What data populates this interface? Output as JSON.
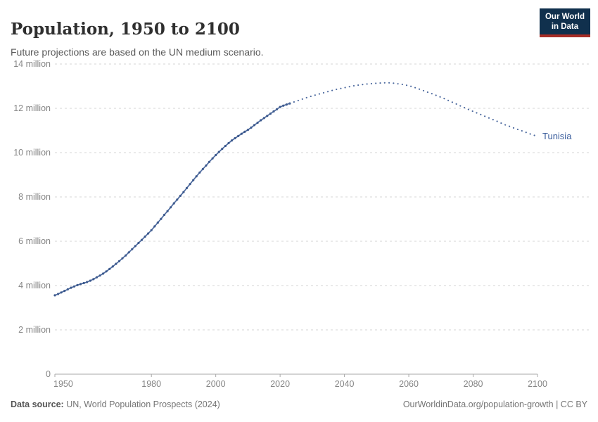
{
  "header": {
    "title": "Population, 1950 to 2100",
    "subtitle": "Future projections are based on the UN medium scenario.",
    "logo": {
      "line1": "Our World",
      "line2": "in Data",
      "bg_color": "#10304d",
      "accent_color": "#a72d26"
    }
  },
  "chart_data": {
    "type": "line",
    "title": "Population, 1950 to 2100",
    "subtitle": "Future projections are based on the UN medium scenario.",
    "entity": "Tunisia",
    "unit": "people",
    "xlim": [
      1950,
      2100
    ],
    "ylim_millions": [
      0,
      14
    ],
    "grid": true,
    "x_ticks": [
      1950,
      1980,
      2000,
      2020,
      2040,
      2060,
      2080,
      2100
    ],
    "y_ticks": [
      {
        "value_millions": 0,
        "label": "0"
      },
      {
        "value_millions": 2,
        "label": "2 million"
      },
      {
        "value_millions": 4,
        "label": "4 million"
      },
      {
        "value_millions": 6,
        "label": "6 million"
      },
      {
        "value_millions": 8,
        "label": "8 million"
      },
      {
        "value_millions": 10,
        "label": "10 million"
      },
      {
        "value_millions": 12,
        "label": "12 million"
      },
      {
        "value_millions": 14,
        "label": "14 million"
      }
    ],
    "series": [
      {
        "name": "Tunisia (historical estimates)",
        "style": "solid_with_markers",
        "start_year": 1950,
        "end_year": 2023,
        "values_millions": [
          3.56,
          3.62,
          3.69,
          3.76,
          3.83,
          3.9,
          3.96,
          4.02,
          4.07,
          4.11,
          4.16,
          4.22,
          4.29,
          4.37,
          4.45,
          4.54,
          4.64,
          4.75,
          4.86,
          4.98,
          5.1,
          5.23,
          5.36,
          5.5,
          5.64,
          5.78,
          5.92,
          6.06,
          6.21,
          6.35,
          6.5,
          6.67,
          6.84,
          7.01,
          7.19,
          7.36,
          7.53,
          7.71,
          7.88,
          8.05,
          8.22,
          8.4,
          8.58,
          8.76,
          8.93,
          9.1,
          9.26,
          9.42,
          9.58,
          9.74,
          9.89,
          10.03,
          10.17,
          10.3,
          10.43,
          10.55,
          10.65,
          10.75,
          10.85,
          10.94,
          11.03,
          11.13,
          11.24,
          11.35,
          11.46,
          11.56,
          11.66,
          11.76,
          11.86,
          11.96,
          12.06,
          12.12,
          12.17,
          12.22
        ]
      },
      {
        "name": "Tunisia (UN medium projection)",
        "style": "dotted",
        "start_year": 2023,
        "end_year": 2100,
        "values_millions": [
          12.22,
          12.27,
          12.32,
          12.37,
          12.42,
          12.47,
          12.52,
          12.56,
          12.6,
          12.64,
          12.68,
          12.72,
          12.76,
          12.8,
          12.84,
          12.87,
          12.9,
          12.93,
          12.96,
          12.99,
          13.02,
          13.04,
          13.06,
          13.08,
          13.1,
          13.11,
          13.12,
          13.13,
          13.14,
          13.15,
          13.15,
          13.15,
          13.14,
          13.12,
          13.1,
          13.08,
          13.05,
          13.02,
          12.98,
          12.93,
          12.88,
          12.83,
          12.77,
          12.72,
          12.67,
          12.61,
          12.56,
          12.5,
          12.44,
          12.37,
          12.31,
          12.24,
          12.18,
          12.11,
          12.05,
          11.98,
          11.92,
          11.86,
          11.8,
          11.74,
          11.68,
          11.62,
          11.56,
          11.5,
          11.44,
          11.38,
          11.31,
          11.25,
          11.2,
          11.15,
          11.09,
          11.04,
          10.99,
          10.94,
          10.88,
          10.83,
          10.78,
          10.73
        ]
      }
    ],
    "entity_label": "Tunisia",
    "colors": {
      "line": "#4d6a9f",
      "marker": "#3d5a8e",
      "entity_label": "#3a5d9c",
      "grid": "#d6d6d6",
      "axis": "#a8a8a8",
      "tick_text": "#858585"
    }
  },
  "footer": {
    "source_label": "Data source:",
    "source_text": " UN, World Population Prospects (2024)",
    "link": "OurWorldinData.org/population-growth | CC BY"
  }
}
